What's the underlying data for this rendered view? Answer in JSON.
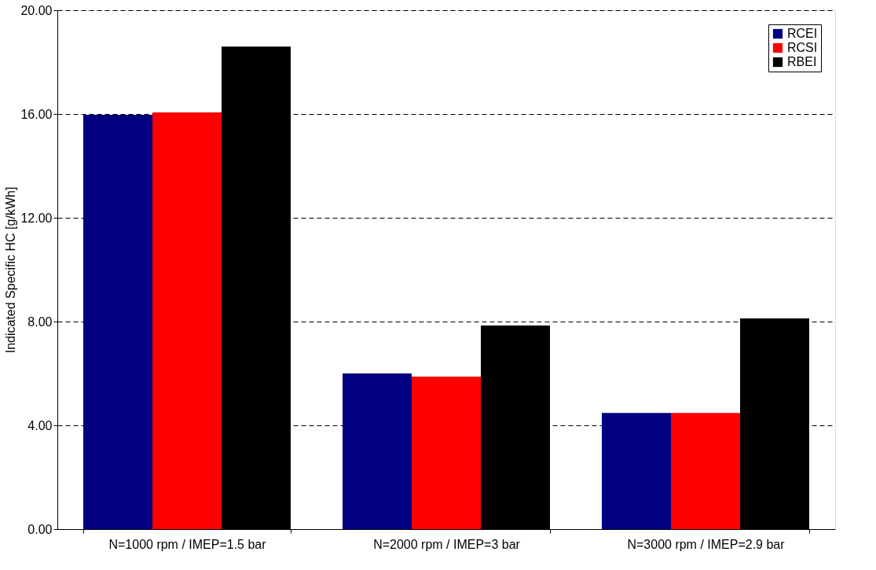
{
  "chart_data": {
    "type": "bar",
    "ylabel": "Indicated Specific HC [g/kWh]",
    "categories": [
      "N=1000 rpm / IMEP=1.5 bar",
      "N=2000 rpm / IMEP=3 bar",
      "N=3000 rpm / IMEP=2.9 bar"
    ],
    "series": [
      {
        "name": "RCEI",
        "color": "#000080",
        "values": [
          15.97,
          6.0,
          4.48
        ]
      },
      {
        "name": "RCSI",
        "color": "#ff0000",
        "values": [
          16.06,
          5.88,
          4.48
        ]
      },
      {
        "name": "RBEI",
        "color": "#000000",
        "values": [
          18.6,
          7.85,
          8.12
        ]
      }
    ],
    "ylim": [
      0,
      20
    ],
    "yticks": [
      {
        "value": 0,
        "label": "0.00"
      },
      {
        "value": 4,
        "label": "4.00"
      },
      {
        "value": 8,
        "label": "8.00"
      },
      {
        "value": 12,
        "label": "12.00"
      },
      {
        "value": 16,
        "label": "16.00"
      },
      {
        "value": 20,
        "label": "20.00"
      }
    ],
    "grid": "y",
    "legend": "top right"
  }
}
